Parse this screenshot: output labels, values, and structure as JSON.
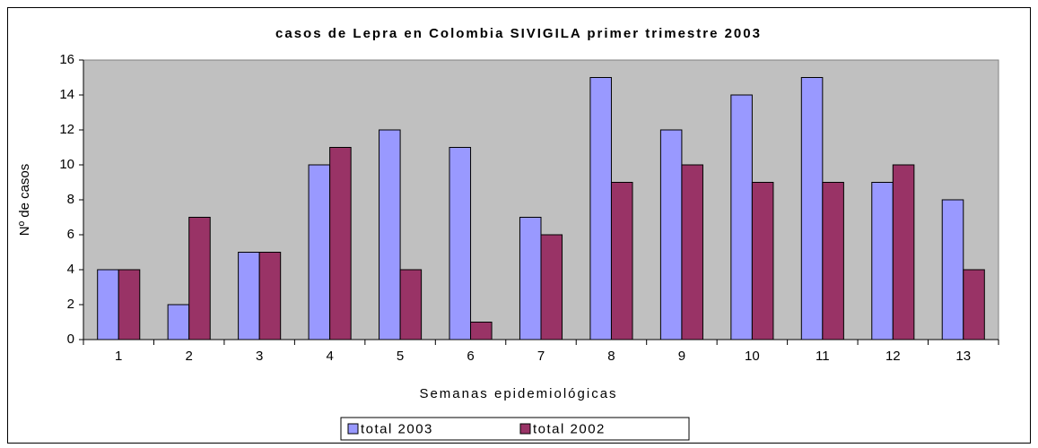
{
  "chart_data": {
    "type": "bar",
    "title": "casos de Lepra en Colombia SIVIGILA primer trimestre 2003",
    "xlabel": "Semanas epidemiológicas",
    "ylabel": "Nº de casos",
    "categories": [
      "1",
      "2",
      "3",
      "4",
      "5",
      "6",
      "7",
      "8",
      "9",
      "10",
      "11",
      "12",
      "13"
    ],
    "series": [
      {
        "name": "total 2003",
        "color": "#9999ff",
        "values": [
          4,
          2,
          5,
          10,
          12,
          11,
          7,
          15,
          12,
          14,
          15,
          9,
          8
        ]
      },
      {
        "name": "total 2002",
        "color": "#993366",
        "values": [
          4,
          7,
          5,
          11,
          4,
          1,
          6,
          9,
          10,
          9,
          9,
          10,
          4
        ]
      }
    ],
    "ylim": [
      0,
      16
    ],
    "yticks": [
      0,
      2,
      4,
      6,
      8,
      10,
      12,
      14,
      16
    ],
    "grid": false,
    "legend": "bottom",
    "plot_background": "#c0c0c0"
  }
}
